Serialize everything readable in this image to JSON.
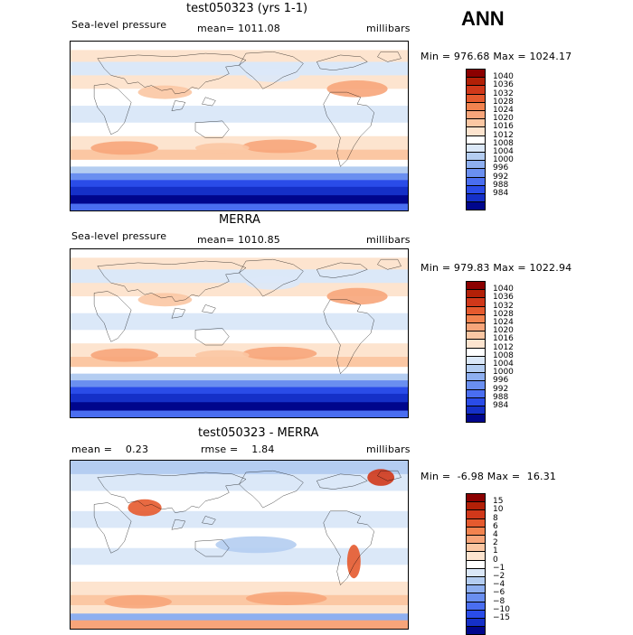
{
  "season": "ANN",
  "panels": [
    {
      "title": "test050323 (yrs 1-1)",
      "left_label": "Sea-level pressure",
      "center_label": "mean= 1011.08",
      "right_label": "millibars",
      "minmax": "Min = 976.68 Max = 1024.17",
      "kind": "abs",
      "colorbar": {
        "colors": [
          "#8b0000",
          "#b22007",
          "#d0381a",
          "#e55a2e",
          "#f2834f",
          "#f7a57a",
          "#fbc7a3",
          "#fde4cf",
          "#ffffff",
          "#dbe8f8",
          "#b4cdf1",
          "#8eaff0",
          "#6a8ff0",
          "#4a6ef0",
          "#2a4ce8",
          "#1530c8",
          "#00068c"
        ],
        "labels": [
          "1040",
          "1036",
          "1032",
          "1028",
          "1024",
          "1020",
          "1016",
          "1012",
          "1008",
          "1004",
          "1000",
          "996",
          "992",
          "988",
          "984"
        ]
      }
    },
    {
      "title": "MERRA",
      "left_label": "Sea-level pressure",
      "center_label": "mean= 1010.85",
      "right_label": "millibars",
      "minmax": "Min = 979.83 Max = 1022.94",
      "kind": "abs",
      "colorbar": {
        "colors": [
          "#8b0000",
          "#b22007",
          "#d0381a",
          "#e55a2e",
          "#f2834f",
          "#f7a57a",
          "#fbc7a3",
          "#fde4cf",
          "#ffffff",
          "#dbe8f8",
          "#b4cdf1",
          "#8eaff0",
          "#6a8ff0",
          "#4a6ef0",
          "#2a4ce8",
          "#1530c8",
          "#00068c"
        ],
        "labels": [
          "1040",
          "1036",
          "1032",
          "1028",
          "1024",
          "1020",
          "1016",
          "1012",
          "1008",
          "1004",
          "1000",
          "996",
          "992",
          "988",
          "984"
        ]
      }
    },
    {
      "title": "test050323 - MERRA",
      "left_label": "mean =    0.23",
      "center_label": "rmse =    1.84",
      "right_label": "millibars",
      "minmax": "Min =  -6.98 Max =  16.31",
      "kind": "diff",
      "colorbar": {
        "colors": [
          "#8b0000",
          "#b22007",
          "#d0381a",
          "#e55a2e",
          "#f2834f",
          "#f7a57a",
          "#fbc7a3",
          "#fde4cf",
          "#ffffff",
          "#dbe8f8",
          "#b4cdf1",
          "#8eaff0",
          "#6a8ff0",
          "#4a6ef0",
          "#2a4ce8",
          "#1530c8",
          "#00068c"
        ],
        "labels": [
          "15",
          "10",
          "8",
          "6",
          "4",
          "2",
          "1",
          "0",
          "−1",
          "−2",
          "−4",
          "−6",
          "−8",
          "−10",
          "−15"
        ]
      }
    }
  ],
  "icons": {
    "coastline": "coastline-outline"
  }
}
